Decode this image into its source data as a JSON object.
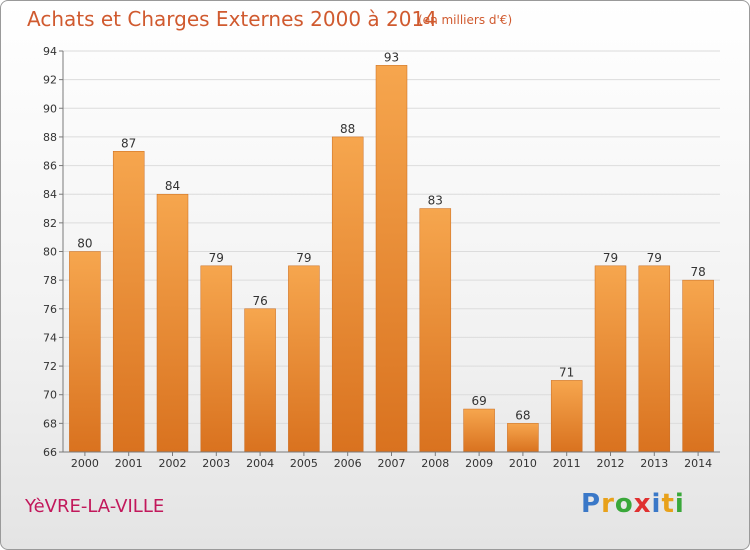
{
  "header": {
    "title": "Achats et Charges Externes 2000 à 2014",
    "subtitle": "(en milliers d'€)"
  },
  "footer": {
    "town": "YèVRE-LA-VILLE",
    "logo": {
      "letters": [
        "P",
        "r",
        "o",
        "x",
        "i",
        "t",
        "i"
      ],
      "colors": [
        "#3a78c8",
        "#e8a11a",
        "#3aa83a",
        "#e03030",
        "#3a78c8",
        "#e8a11a",
        "#3aa83a"
      ]
    }
  },
  "colors": {
    "bar_light": "#f6a64e",
    "bar_dark": "#d9721f",
    "axis": "#7a7a7a",
    "grid": "#dcdcdc",
    "text": "#333333"
  },
  "chart_data": {
    "type": "bar",
    "categories": [
      "2000",
      "2001",
      "2002",
      "2003",
      "2004",
      "2005",
      "2006",
      "2007",
      "2008",
      "2009",
      "2010",
      "2011",
      "2012",
      "2013",
      "2014"
    ],
    "values": [
      80,
      87,
      84,
      79,
      76,
      79,
      88,
      93,
      83,
      69,
      68,
      71,
      79,
      79,
      78
    ],
    "ylim": [
      66,
      94
    ],
    "yticks": [
      66,
      68,
      70,
      72,
      74,
      76,
      78,
      80,
      82,
      84,
      86,
      88,
      90,
      92,
      94
    ],
    "grid": true
  }
}
